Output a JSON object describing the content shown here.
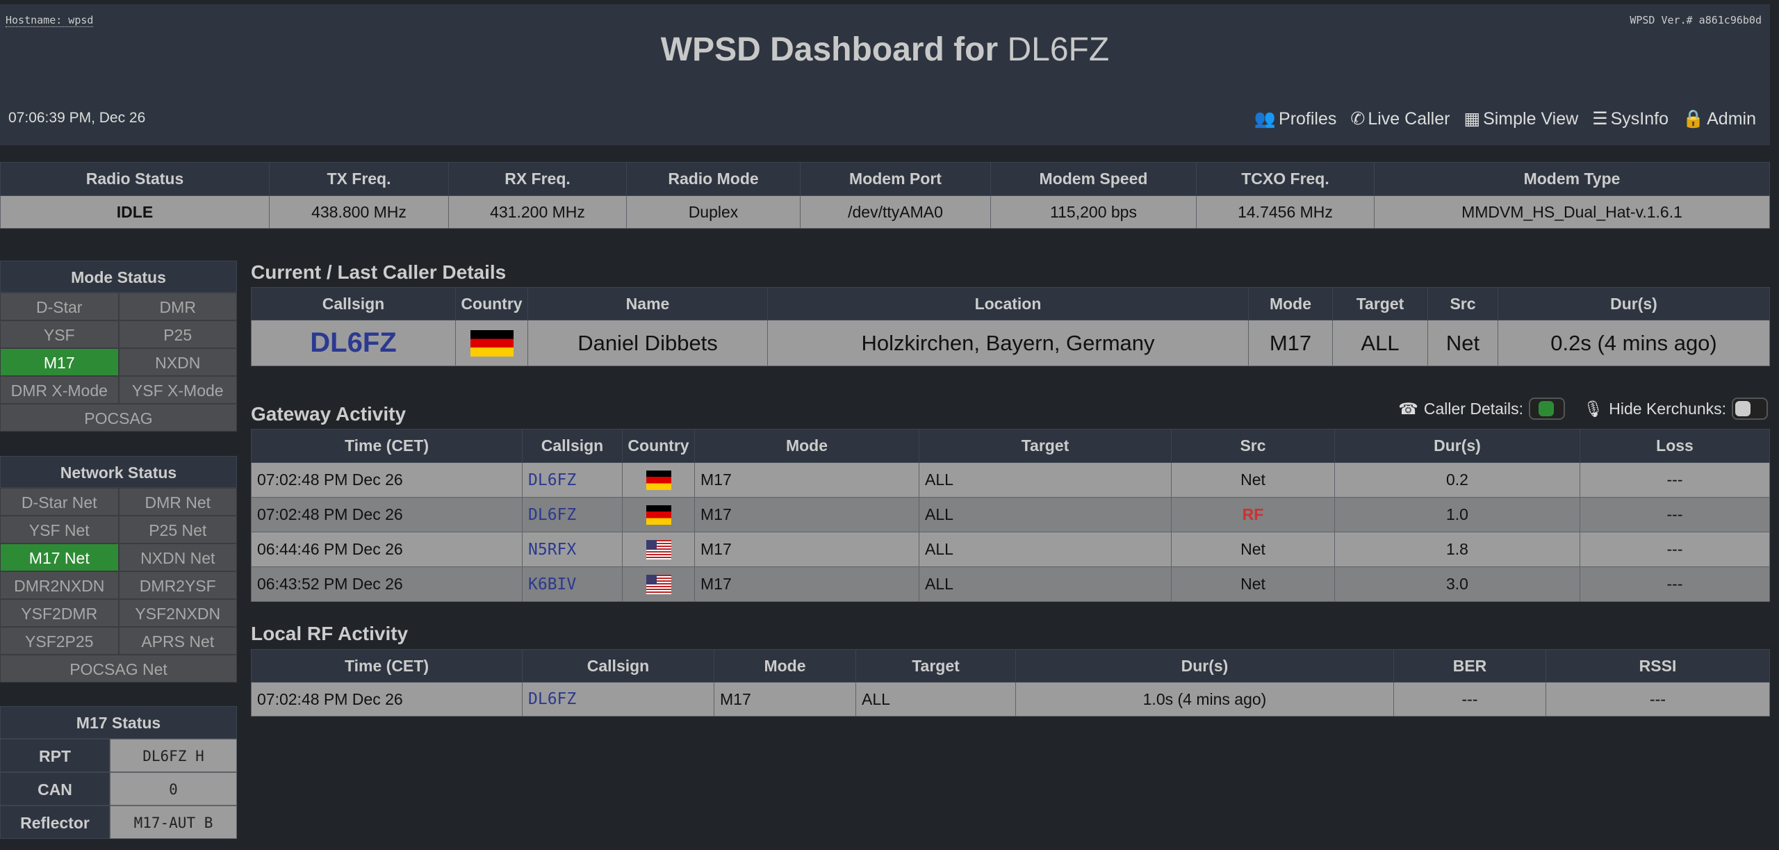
{
  "header": {
    "hostname": "Hostname: wpsd",
    "version": "WPSD Ver.# a861c96b0d",
    "title_prefix": "WPSD Dashboard for",
    "callsign": "DL6FZ",
    "clock": "07:06:39 PM, Dec 26",
    "nav": [
      {
        "icon": "users-icon",
        "glyph": "👥",
        "label": "Profiles"
      },
      {
        "icon": "phone-volume-icon",
        "glyph": "✆",
        "label": "Live Caller"
      },
      {
        "icon": "table-icon",
        "glyph": "▦",
        "label": "Simple View"
      },
      {
        "icon": "list-icon",
        "glyph": "☰",
        "label": "SysInfo"
      },
      {
        "icon": "lock-icon",
        "glyph": "🔒",
        "label": "Admin"
      }
    ]
  },
  "radio": {
    "headers": [
      "Radio Status",
      "TX Freq.",
      "RX Freq.",
      "Radio Mode",
      "Modem Port",
      "Modem Speed",
      "TCXO Freq.",
      "Modem Type"
    ],
    "values": [
      "IDLE",
      "438.800 MHz",
      "431.200 MHz",
      "Duplex",
      "/dev/ttyAMA0",
      "115,200 bps",
      "14.7456 MHz",
      "MMDVM_HS_Dual_Hat-v.1.6.1"
    ]
  },
  "mode_status": {
    "title": "Mode Status",
    "items": [
      {
        "label": "D-Star",
        "active": false
      },
      {
        "label": "DMR",
        "active": false
      },
      {
        "label": "YSF",
        "active": false
      },
      {
        "label": "P25",
        "active": false
      },
      {
        "label": "M17",
        "active": true
      },
      {
        "label": "NXDN",
        "active": false
      },
      {
        "label": "DMR X-Mode",
        "active": false
      },
      {
        "label": "YSF X-Mode",
        "active": false
      },
      {
        "label": "POCSAG",
        "active": false
      }
    ]
  },
  "network_status": {
    "title": "Network Status",
    "items": [
      {
        "label": "D-Star Net",
        "active": false
      },
      {
        "label": "DMR Net",
        "active": false
      },
      {
        "label": "YSF Net",
        "active": false
      },
      {
        "label": "P25 Net",
        "active": false
      },
      {
        "label": "M17 Net",
        "active": true
      },
      {
        "label": "NXDN Net",
        "active": false
      },
      {
        "label": "DMR2NXDN",
        "active": false
      },
      {
        "label": "DMR2YSF",
        "active": false
      },
      {
        "label": "YSF2DMR",
        "active": false
      },
      {
        "label": "YSF2NXDN",
        "active": false
      },
      {
        "label": "YSF2P25",
        "active": false
      },
      {
        "label": "APRS Net",
        "active": false
      },
      {
        "label": "POCSAG Net",
        "active": false
      }
    ]
  },
  "m17_status": {
    "title": "M17 Status",
    "rows": [
      {
        "k": "RPT",
        "v": "DL6FZ  H"
      },
      {
        "k": "CAN",
        "v": "0"
      },
      {
        "k": "Reflector",
        "v": "M17-AUT B"
      }
    ]
  },
  "caller": {
    "title": "Current / Last Caller Details",
    "headers": [
      "Callsign",
      "Country",
      "Name",
      "Location",
      "Mode",
      "Target",
      "Src",
      "Dur(s)"
    ],
    "row": {
      "callsign": "DL6FZ",
      "country": "de",
      "name": "Daniel Dibbets",
      "location": "Holzkirchen, Bayern, Germany",
      "mode": "M17",
      "target": "ALL",
      "src": "Net",
      "dur": "0.2s (4 mins ago)"
    }
  },
  "gateway": {
    "title": "Gateway Activity",
    "caller_details_label": "Caller Details:",
    "caller_details_on": true,
    "hide_kerchunks_label": "Hide Kerchunks:",
    "hide_kerchunks_on": false,
    "headers": [
      "Time (CET)",
      "Callsign",
      "Country",
      "Mode",
      "Target",
      "Src",
      "Dur(s)",
      "Loss"
    ],
    "rows": [
      [
        "07:02:48 PM Dec 26",
        "DL6FZ",
        "de",
        "M17",
        "ALL",
        "Net",
        "0.2",
        "---"
      ],
      [
        "07:02:48 PM Dec 26",
        "DL6FZ",
        "de",
        "M17",
        "ALL",
        "RF",
        "1.0",
        "---"
      ],
      [
        "06:44:46 PM Dec 26",
        "N5RFX",
        "us",
        "M17",
        "ALL",
        "Net",
        "1.8",
        "---"
      ],
      [
        "06:43:52 PM Dec 26",
        "K6BIV",
        "us",
        "M17",
        "ALL",
        "Net",
        "3.0",
        "---"
      ]
    ]
  },
  "localrf": {
    "title": "Local RF Activity",
    "headers": [
      "Time (CET)",
      "Callsign",
      "Mode",
      "Target",
      "Dur(s)",
      "BER",
      "RSSI"
    ],
    "rows": [
      [
        "07:02:48 PM Dec 26",
        "DL6FZ",
        "M17",
        "ALL",
        "1.0s (4 mins ago)",
        "---",
        "---"
      ]
    ]
  },
  "colors": {
    "active": "#2e8b35",
    "callsign": "#2b3990",
    "rf": "#d03030",
    "header": "#2e3540"
  }
}
